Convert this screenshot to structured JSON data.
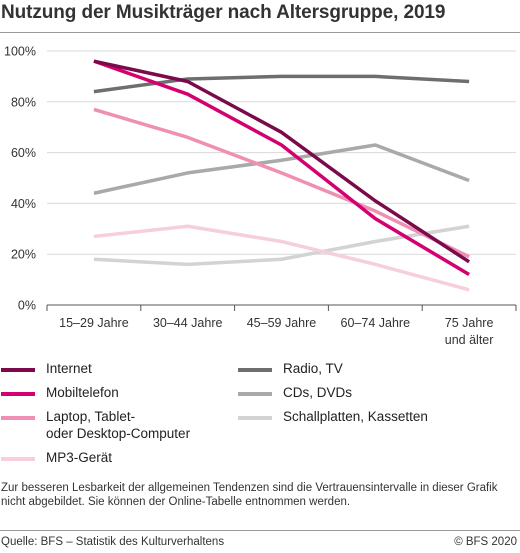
{
  "title": "Nutzung der Musikträger nach Altersgruppe, 2019",
  "note": "Zur besseren Lesbarkeit der allgemeinen Tendenzen sind die Vertrauensintervalle in dieser Grafik nicht abgebildet. Sie können der Online-Tabelle entnommen werden.",
  "source": "Quelle: BFS – Statistik des Kulturverhaltens",
  "credit": "© BFS 2020",
  "chart_data": {
    "type": "line",
    "categories": [
      "15–29 Jahre",
      "30–44 Jahre",
      "45–59 Jahre",
      "60–74 Jahre",
      "75 Jahre und älter"
    ],
    "category_lines": [
      [
        "15–29 Jahre"
      ],
      [
        "30–44 Jahre"
      ],
      [
        "45–59 Jahre"
      ],
      [
        "60–74 Jahre"
      ],
      [
        "75 Jahre",
        "und älter"
      ]
    ],
    "ylim": [
      0,
      100
    ],
    "yticks": [
      0,
      20,
      40,
      60,
      80,
      100
    ],
    "ytick_labels": [
      "0%",
      "20%",
      "40%",
      "60%",
      "80%",
      "100%"
    ],
    "grid": "horizontal",
    "legend_position": "bottom",
    "series": [
      {
        "name": "Internet",
        "color": "#7a0a4a",
        "values": [
          96,
          88,
          68,
          41,
          17
        ]
      },
      {
        "name": "Mobiltelefon",
        "color": "#d4006f",
        "values": [
          96,
          83,
          63,
          34,
          12
        ]
      },
      {
        "name": "Laptop, Tablet- oder Desktop-Computer",
        "legend_lines": [
          "Laptop, Tablet-",
          "oder Desktop-Computer"
        ],
        "color": "#ef8fb3",
        "values": [
          77,
          66,
          52,
          37,
          19
        ]
      },
      {
        "name": "MP3-Gerät",
        "color": "#f7cedd",
        "values": [
          27,
          31,
          25,
          16,
          6
        ]
      },
      {
        "name": "Radio, TV",
        "color": "#6e6e6e",
        "values": [
          84,
          89,
          90,
          90,
          88
        ]
      },
      {
        "name": "CDs, DVDs",
        "color": "#a9a9a9",
        "values": [
          44,
          52,
          57,
          63,
          49
        ]
      },
      {
        "name": "Schallplatten, Kassetten",
        "color": "#d3d3d3",
        "values": [
          18,
          16,
          18,
          25,
          31
        ]
      }
    ],
    "draw_order": [
      6,
      5,
      4,
      3,
      2,
      1,
      0
    ]
  }
}
